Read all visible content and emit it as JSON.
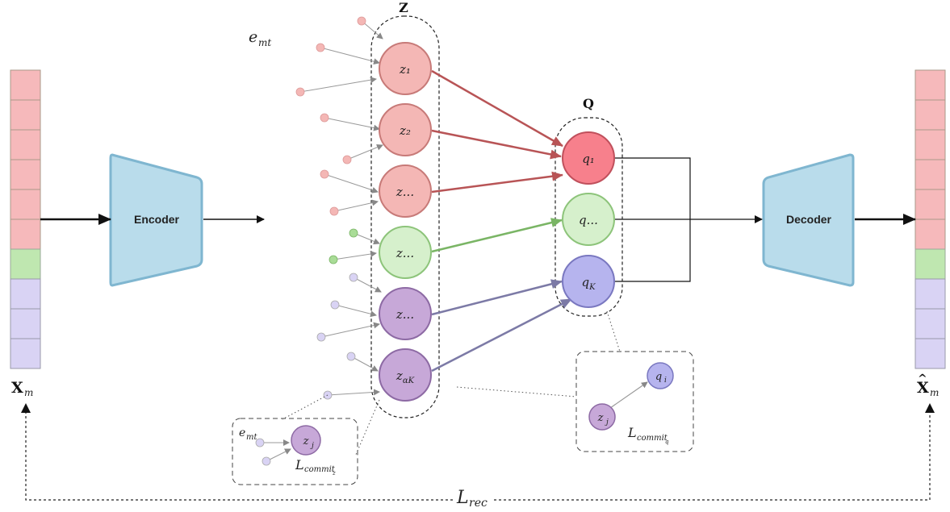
{
  "labels": {
    "z_group": "Z",
    "q_group": "Q",
    "emt_top": "e_mt",
    "input_var": "X_m",
    "output_var": "X̂_m",
    "loss_rec": "L_rec"
  },
  "encoder": {
    "label": "Encoder"
  },
  "decoder": {
    "label": "Decoder"
  },
  "z_nodes": [
    {
      "label": "z₁",
      "color": "pink"
    },
    {
      "label": "z₂",
      "color": "pink"
    },
    {
      "label": "z...",
      "color": "pink"
    },
    {
      "label": "z...",
      "color": "green"
    },
    {
      "label": "z...",
      "color": "purple"
    },
    {
      "label": "z_αK",
      "color": "purple"
    }
  ],
  "q_nodes": [
    {
      "label": "q₁",
      "color": "red"
    },
    {
      "label": "q...",
      "color": "green"
    },
    {
      "label": "q_K",
      "color": "blue"
    }
  ],
  "inset_left": {
    "emt": "e_mt",
    "node": "z_j",
    "loss": "L_commit_z"
  },
  "inset_right": {
    "node_j": "z_j",
    "node_i": "q_i",
    "loss": "L_commit_q"
  },
  "input_cells": [
    "pink",
    "pink",
    "pink",
    "pink",
    "pink",
    "pink",
    "green",
    "lavender",
    "lavender",
    "lavender"
  ],
  "output_cells": [
    "pink",
    "pink",
    "pink",
    "pink",
    "pink",
    "pink",
    "green",
    "lavender",
    "lavender",
    "lavender"
  ],
  "colors": {
    "pink_fill": "#f4b7b5",
    "pink_stroke": "#c77a78",
    "red_fill": "#f7808c",
    "red_stroke": "#c0505c",
    "green_fill": "#d6f0cc",
    "green_stroke": "#8dc47a",
    "purple_fill": "#c7a8d8",
    "purple_stroke": "#8d6aa4",
    "blue_fill": "#b6b4ee",
    "blue_stroke": "#7a78c0",
    "lavender_cell": "#d9d3f4",
    "pink_cell": "#f6b9bb",
    "green_cell": "#bfe7b0",
    "block_fill": "#b9dceb",
    "block_stroke": "#7fb6d0",
    "arrow_red": "#b85456",
    "arrow_green": "#7ab565",
    "arrow_purple": "#7c7aa6"
  }
}
